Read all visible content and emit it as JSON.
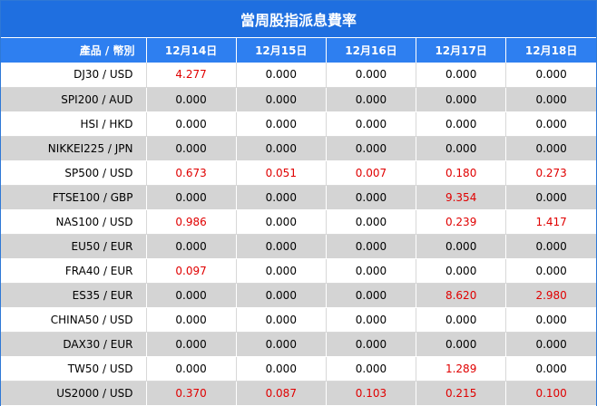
{
  "title": "當周股指派息費率",
  "header": {
    "product_label": "產品 / 幣別",
    "dates": [
      "12月14日",
      "12月15日",
      "12月16日",
      "12月17日",
      "12月18日"
    ]
  },
  "rows": [
    {
      "product": "DJ30 / USD",
      "values": [
        "4.277",
        "0.000",
        "0.000",
        "0.000",
        "0.000"
      ]
    },
    {
      "product": "SPI200 / AUD",
      "values": [
        "0.000",
        "0.000",
        "0.000",
        "0.000",
        "0.000"
      ]
    },
    {
      "product": "HSI / HKD",
      "values": [
        "0.000",
        "0.000",
        "0.000",
        "0.000",
        "0.000"
      ]
    },
    {
      "product": "NIKKEI225 / JPN",
      "values": [
        "0.000",
        "0.000",
        "0.000",
        "0.000",
        "0.000"
      ]
    },
    {
      "product": "SP500 / USD",
      "values": [
        "0.673",
        "0.051",
        "0.007",
        "0.180",
        "0.273"
      ]
    },
    {
      "product": "FTSE100 / GBP",
      "values": [
        "0.000",
        "0.000",
        "0.000",
        "9.354",
        "0.000"
      ]
    },
    {
      "product": "NAS100 / USD",
      "values": [
        "0.986",
        "0.000",
        "0.000",
        "0.239",
        "1.417"
      ]
    },
    {
      "product": "EU50 / EUR",
      "values": [
        "0.000",
        "0.000",
        "0.000",
        "0.000",
        "0.000"
      ]
    },
    {
      "product": "FRA40 / EUR",
      "values": [
        "0.097",
        "0.000",
        "0.000",
        "0.000",
        "0.000"
      ]
    },
    {
      "product": "ES35 / EUR",
      "values": [
        "0.000",
        "0.000",
        "0.000",
        "8.620",
        "2.980"
      ]
    },
    {
      "product": "CHINA50 / USD",
      "values": [
        "0.000",
        "0.000",
        "0.000",
        "0.000",
        "0.000"
      ]
    },
    {
      "product": "DAX30 / EUR",
      "values": [
        "0.000",
        "0.000",
        "0.000",
        "0.000",
        "0.000"
      ]
    },
    {
      "product": "TW50 / USD",
      "values": [
        "0.000",
        "0.000",
        "0.000",
        "1.289",
        "0.000"
      ]
    },
    {
      "product": "US2000 / USD",
      "values": [
        "0.370",
        "0.087",
        "0.103",
        "0.215",
        "0.100"
      ]
    }
  ],
  "colors": {
    "title_bg": "#1f6fe0",
    "header_bg": "#2e7ff0",
    "stripe": "#d4d4d4",
    "nonzero_text": "#e00000"
  }
}
